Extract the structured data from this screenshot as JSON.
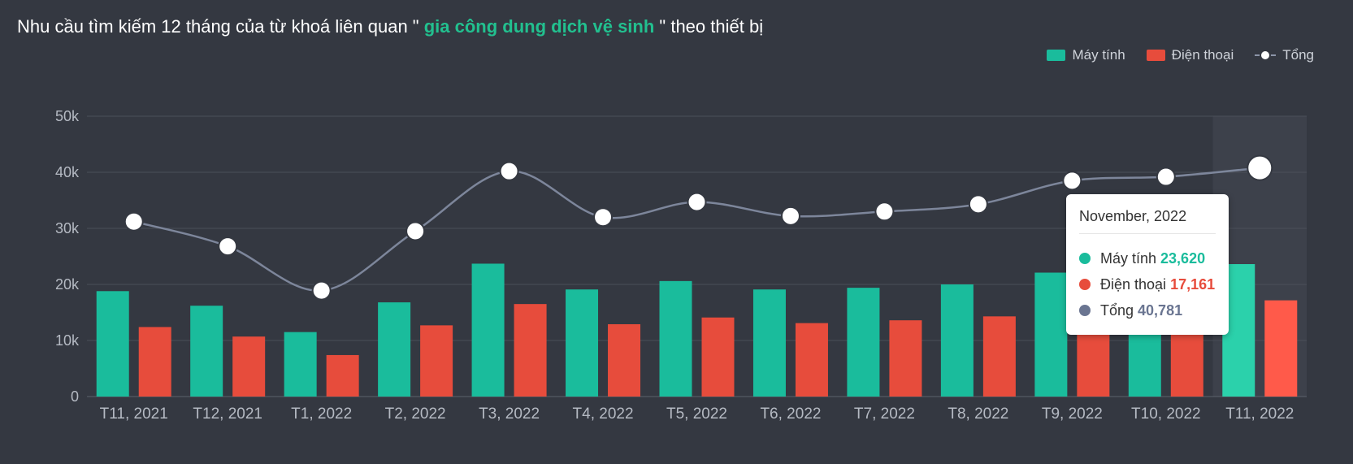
{
  "title": {
    "prefix": "Nhu cầu tìm kiếm 12 tháng của từ khoá liên quan \"",
    "keyword": " gia công dung dịch vệ sinh ",
    "suffix": "\" theo thiết bị"
  },
  "legend": [
    {
      "label": "Máy tính",
      "color": "#1abc9c",
      "kind": "bar"
    },
    {
      "label": "Điện thoại",
      "color": "#e74c3c",
      "kind": "bar"
    },
    {
      "label": "Tổng",
      "color": "#8c95a8",
      "kind": "line"
    }
  ],
  "tooltip": {
    "title": "November, 2022",
    "rows": [
      {
        "label": "Máy tính",
        "value": "23,620",
        "color": "#1abc9c"
      },
      {
        "label": "Điện thoại",
        "value": "17,161",
        "color": "#e74c3c"
      },
      {
        "label": "Tổng",
        "value": "40,781",
        "color": "#6a7591"
      }
    ]
  },
  "chart_data": {
    "type": "bar",
    "categories": [
      "T11, 2021",
      "T12, 2021",
      "T1, 2022",
      "T2, 2022",
      "T3, 2022",
      "T4, 2022",
      "T5, 2022",
      "T6, 2022",
      "T7, 2022",
      "T8, 2022",
      "T9, 2022",
      "T10, 2022",
      "T11, 2022"
    ],
    "series": [
      {
        "name": "Máy tính",
        "kind": "bar",
        "color": "#1abc9c",
        "values": [
          18800,
          16200,
          11500,
          16800,
          23700,
          19100,
          20600,
          19100,
          19400,
          20000,
          22100,
          23000,
          23620
        ]
      },
      {
        "name": "Điện thoại",
        "kind": "bar",
        "color": "#e74c3c",
        "values": [
          12400,
          10700,
          7400,
          12700,
          16500,
          12900,
          14100,
          13100,
          13600,
          14300,
          16400,
          16200,
          17161
        ]
      },
      {
        "name": "Tổng",
        "kind": "line",
        "color": "#7d869b",
        "values": [
          31200,
          26800,
          18900,
          29500,
          40200,
          32000,
          34700,
          32200,
          33000,
          34300,
          38500,
          39200,
          40781
        ]
      }
    ],
    "y_ticks": [
      "0",
      "10k",
      "20k",
      "30k",
      "40k",
      "50k"
    ],
    "ylim": [
      0,
      50000
    ],
    "grid": true,
    "highlight_index": 12,
    "highlight_color": "#2bd1ab",
    "highlight_color2": "#ff5a4a"
  }
}
